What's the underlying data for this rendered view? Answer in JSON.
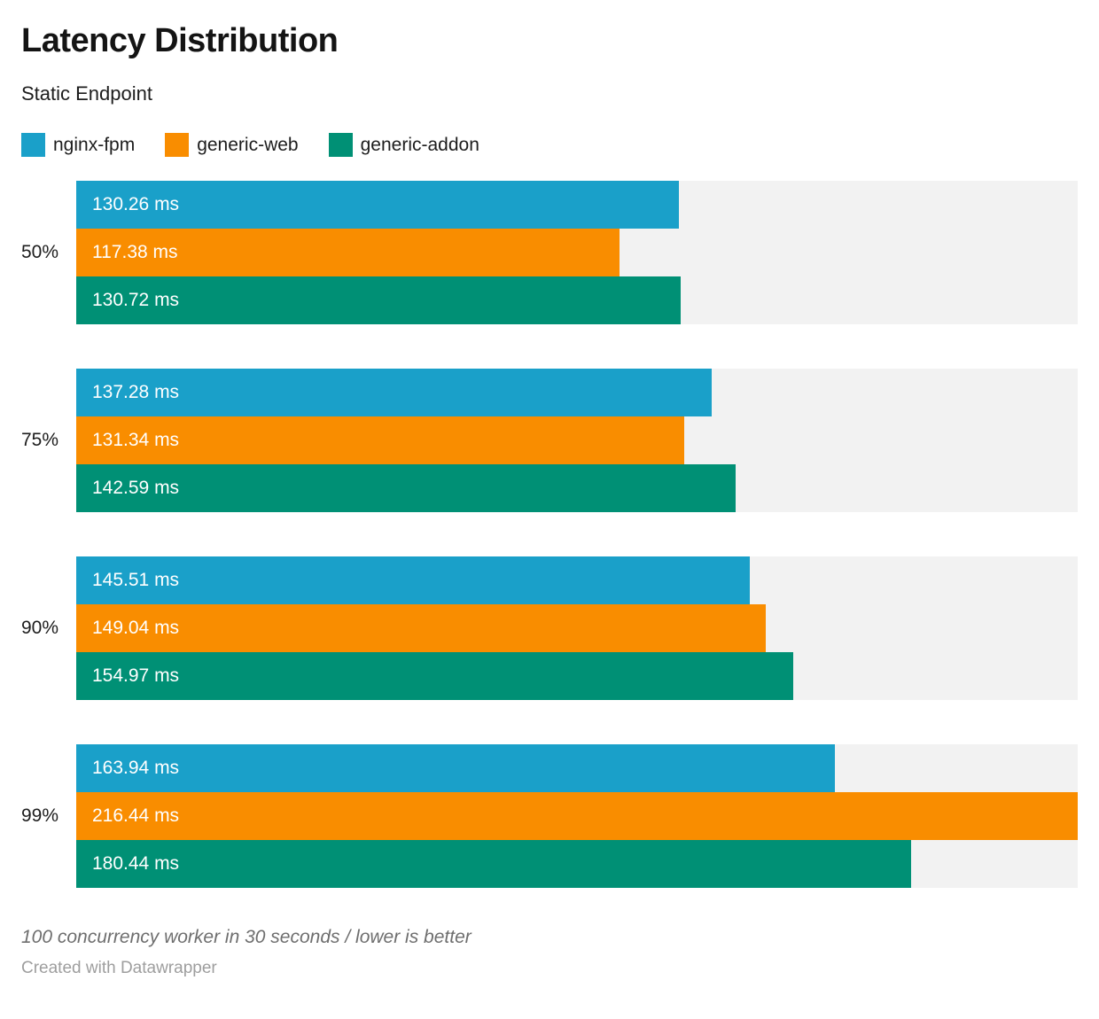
{
  "header": {
    "title": "Latency Distribution",
    "subtitle": "Static Endpoint"
  },
  "legend": [
    {
      "label": "nginx-fpm",
      "color": "#1AA0C9"
    },
    {
      "label": "generic-web",
      "color": "#F98D00"
    },
    {
      "label": "generic-addon",
      "color": "#009075"
    }
  ],
  "chart_data": {
    "type": "bar",
    "orientation": "horizontal",
    "title": "Latency Distribution",
    "subtitle": "Static Endpoint",
    "unit": "ms",
    "xlim": [
      0,
      216.44
    ],
    "xmax": 216.44,
    "grid": false,
    "legend_position": "top",
    "track_color": "#F2F2F2",
    "categories": [
      "50%",
      "75%",
      "90%",
      "99%"
    ],
    "series": [
      {
        "name": "nginx-fpm",
        "color": "#1AA0C9",
        "values": [
          130.26,
          137.28,
          145.51,
          163.94
        ]
      },
      {
        "name": "generic-web",
        "color": "#F98D00",
        "values": [
          117.38,
          131.34,
          149.04,
          216.44
        ]
      },
      {
        "name": "generic-addon",
        "color": "#009075",
        "values": [
          130.72,
          142.59,
          154.97,
          180.44
        ]
      }
    ],
    "bar_labels": [
      [
        "130.26 ms",
        "117.38 ms",
        "130.72 ms"
      ],
      [
        "137.28 ms",
        "131.34 ms",
        "142.59 ms"
      ],
      [
        "145.51 ms",
        "149.04 ms",
        "154.97 ms"
      ],
      [
        "163.94 ms",
        "216.44 ms",
        "180.44 ms"
      ]
    ]
  },
  "footer": {
    "note": "100 concurrency worker in 30 seconds / lower is better",
    "credit": "Created with Datawrapper"
  }
}
